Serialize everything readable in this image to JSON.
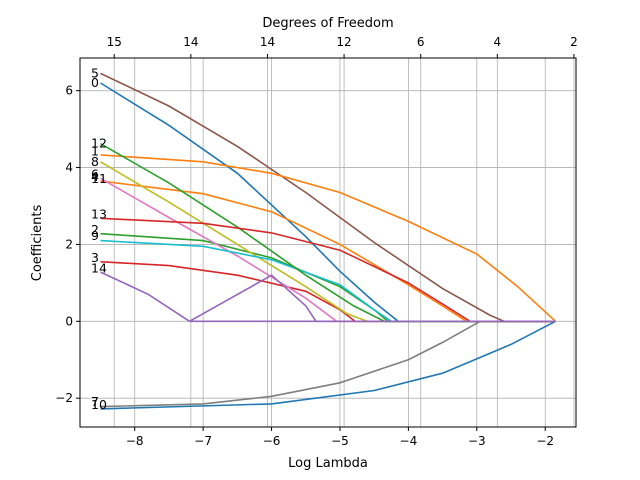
{
  "chart_data": {
    "type": "line",
    "xlabel": "Log Lambda",
    "ylabel": "Coefficients",
    "top_axis_label": "Degrees of Freedom",
    "xlim": [
      -8.8,
      -1.55
    ],
    "ylim": [
      -2.75,
      6.85
    ],
    "grid": true,
    "x_ticks": [
      -8,
      -7,
      -6,
      -5,
      -4,
      -3,
      -2
    ],
    "x_tick_labels": [
      "−8",
      "−7",
      "−6",
      "−5",
      "−4",
      "−3",
      "−2"
    ],
    "y_ticks": [
      -2,
      0,
      2,
      4,
      6
    ],
    "y_tick_labels": [
      "−2",
      "0",
      "2",
      "4",
      "6"
    ],
    "top_ticks": [
      {
        "x": -8.3,
        "label": "15"
      },
      {
        "x": -7.18,
        "label": "14"
      },
      {
        "x": -6.06,
        "label": "14"
      },
      {
        "x": -4.94,
        "label": "12"
      },
      {
        "x": -3.82,
        "label": "6"
      },
      {
        "x": -2.7,
        "label": "4"
      },
      {
        "x": -1.58,
        "label": "2"
      }
    ],
    "series": [
      {
        "label": "0",
        "color": "#1f77b4",
        "start": 6.2,
        "x": [
          -8.5,
          -7.5,
          -6.5,
          -5.5,
          -5.0,
          -4.5,
          -4.15
        ],
        "y": [
          6.2,
          5.1,
          3.85,
          2.2,
          1.3,
          0.5,
          0.0
        ]
      },
      {
        "label": "1",
        "color": "#ff7f0e",
        "start": 3.65,
        "x": [
          -8.5,
          -7.0,
          -6.0,
          -5.0,
          -4.0,
          -3.5,
          -3.15
        ],
        "y": [
          3.65,
          3.32,
          2.85,
          2.0,
          0.95,
          0.4,
          0.0
        ]
      },
      {
        "label": "2",
        "color": "#2ca02c",
        "start": 2.28,
        "x": [
          -8.5,
          -7.0,
          -6.0,
          -5.0,
          -4.5,
          -4.3
        ],
        "y": [
          2.28,
          2.1,
          1.65,
          0.9,
          0.3,
          0.0
        ]
      },
      {
        "label": "3",
        "color": "#d62728",
        "start": 1.55,
        "x": [
          -8.5,
          -7.5,
          -6.5,
          -5.5,
          -5.0,
          -4.78
        ],
        "y": [
          1.55,
          1.45,
          1.2,
          0.78,
          0.3,
          0.0
        ]
      },
      {
        "label": "4",
        "color": "#9467bd",
        "start": 1.28,
        "x": [
          -8.5,
          -7.8,
          -7.2
        ],
        "y": [
          1.28,
          0.7,
          0.0
        ]
      },
      {
        "label": "5",
        "color": "#8c564b",
        "start": 6.45,
        "x": [
          -8.5,
          -7.5,
          -6.5,
          -5.5,
          -4.5,
          -3.5,
          -2.8,
          -2.6
        ],
        "y": [
          6.45,
          5.6,
          4.55,
          3.35,
          2.05,
          0.85,
          0.15,
          0.0
        ]
      },
      {
        "label": "6",
        "color": "#e377c2",
        "start": 3.72,
        "x": [
          -8.5,
          -7.5,
          -6.5,
          -5.5,
          -5.05
        ],
        "y": [
          3.72,
          2.7,
          1.7,
          0.6,
          0.0
        ]
      },
      {
        "label": "7",
        "color": "#7f7f7f",
        "start": -2.22,
        "x": [
          -8.5,
          -7.0,
          -6.0,
          -5.0,
          -4.0,
          -3.5,
          -2.95
        ],
        "y": [
          -2.22,
          -2.15,
          -1.95,
          -1.6,
          -1.0,
          -0.55,
          0.0
        ]
      },
      {
        "label": "8",
        "color": "#bcbd22",
        "start": 4.15,
        "x": [
          -8.5,
          -7.5,
          -6.5,
          -5.5,
          -4.9,
          -4.6
        ],
        "y": [
          4.15,
          3.1,
          2.0,
          0.9,
          0.2,
          0.0
        ]
      },
      {
        "label": "9",
        "color": "#17becf",
        "start": 2.1,
        "x": [
          -8.5,
          -7.0,
          -6.0,
          -5.0,
          -4.5,
          -4.25
        ],
        "y": [
          2.1,
          1.95,
          1.6,
          0.95,
          0.3,
          0.0
        ]
      },
      {
        "label": "10",
        "color": "#1f77b4",
        "start": -2.28,
        "x": [
          -8.5,
          -6.0,
          -4.5,
          -3.5,
          -2.5,
          -1.85
        ],
        "y": [
          -2.28,
          -2.15,
          -1.8,
          -1.35,
          -0.6,
          0.0
        ]
      },
      {
        "label": "11",
        "color": "#ff7f0e",
        "start": 4.33,
        "x": [
          -8.5,
          -7.0,
          -6.0,
          -5.0,
          -4.0,
          -3.0,
          -2.4,
          -1.85
        ],
        "y": [
          4.33,
          4.15,
          3.85,
          3.35,
          2.6,
          1.75,
          0.9,
          0.0
        ]
      },
      {
        "label": "12",
        "color": "#2ca02c",
        "start": 4.62,
        "x": [
          -8.5,
          -7.5,
          -6.5,
          -5.5,
          -4.8,
          -4.35
        ],
        "y": [
          4.62,
          3.6,
          2.45,
          1.2,
          0.4,
          0.0
        ]
      },
      {
        "label": "13",
        "color": "#d62728",
        "start": 2.68,
        "x": [
          -8.5,
          -7.0,
          -6.0,
          -5.0,
          -4.0,
          -3.5,
          -3.1
        ],
        "y": [
          2.68,
          2.55,
          2.3,
          1.85,
          1.0,
          0.45,
          0.0
        ]
      },
      {
        "label": "14",
        "color": "#9467bd",
        "start": 0.0,
        "x": [
          -7.2,
          -6.0,
          -5.5,
          -5.35
        ],
        "y": [
          0.0,
          1.2,
          0.4,
          0.0
        ]
      }
    ],
    "labels_at_left": [
      {
        "label": "5",
        "y": 6.45
      },
      {
        "label": "0",
        "y": 6.2
      },
      {
        "label": "12",
        "y": 4.62
      },
      {
        "label": "1",
        "y": 4.42
      },
      {
        "label": "8",
        "y": 4.15
      },
      {
        "label": "6",
        "y": 3.82
      },
      {
        "label": "4",
        "y": 3.75
      },
      {
        "label": "11",
        "y": 3.7
      },
      {
        "label": "13",
        "y": 2.78
      },
      {
        "label": "2",
        "y": 2.38
      },
      {
        "label": "9",
        "y": 2.22
      },
      {
        "label": "3",
        "y": 1.65
      },
      {
        "label": "14",
        "y": 1.38
      },
      {
        "label": "7",
        "y": -2.1
      },
      {
        "label": "10",
        "y": -2.18
      }
    ]
  }
}
